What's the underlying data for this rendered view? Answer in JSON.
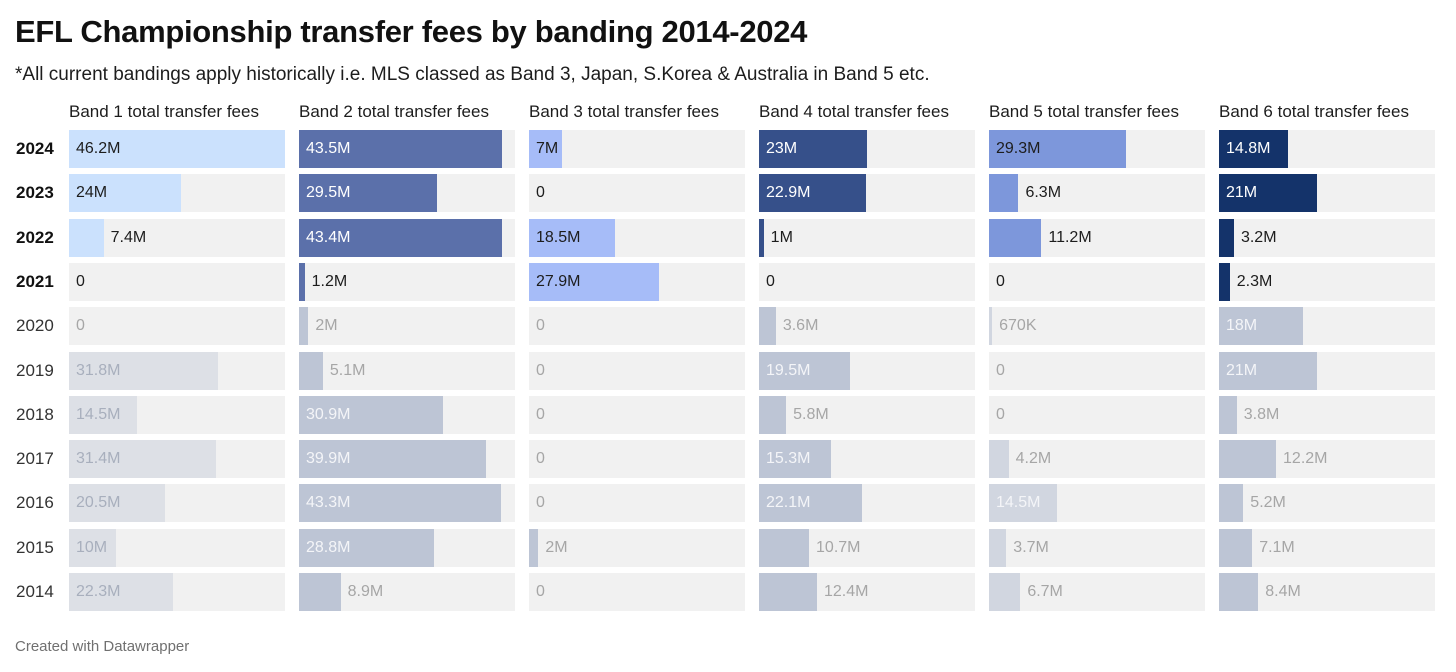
{
  "header": {
    "title": "EFL Championship transfer fees by banding 2014-2024",
    "subtitle": "*All current bandings apply historically i.e. MLS classed as Band 3, Japan, S.Korea & Australia in Band 5 etc."
  },
  "footer": {
    "credit": "Created with Datawrapper"
  },
  "chart_data": {
    "type": "bar",
    "title": "EFL Championship transfer fees by banding 2014-2024",
    "subtitle": "*All current bandings apply historically i.e. MLS classed as Band 3, Japan, S.Korea & Australia in Band 5 etc.",
    "categories": [
      "2024",
      "2023",
      "2022",
      "2021",
      "2020",
      "2019",
      "2018",
      "2017",
      "2016",
      "2015",
      "2014"
    ],
    "highlighted_categories": [
      "2024",
      "2023",
      "2022",
      "2021"
    ],
    "series": [
      {
        "name": "Band 1 total transfer fees",
        "values": [
          46.2,
          24,
          7.4,
          0,
          0,
          31.8,
          14.5,
          31.4,
          20.5,
          10,
          22.3
        ],
        "labels": [
          "46.2M",
          "24M",
          "7.4M",
          "0",
          "0",
          "31.8M",
          "14.5M",
          "31.4M",
          "20.5M",
          "10M",
          "22.3M"
        ],
        "color": "#cbe1fd"
      },
      {
        "name": "Band 2 total transfer fees",
        "values": [
          43.5,
          29.5,
          43.4,
          1.2,
          2,
          5.1,
          30.9,
          39.9,
          43.3,
          28.8,
          8.9
        ],
        "labels": [
          "43.5M",
          "29.5M",
          "43.4M",
          "1.2M",
          "2M",
          "5.1M",
          "30.9M",
          "39.9M",
          "43.3M",
          "28.8M",
          "8.9M"
        ],
        "color": "#5b70aa"
      },
      {
        "name": "Band 3 total transfer fees",
        "values": [
          7,
          0,
          18.5,
          27.9,
          0,
          0,
          0,
          0,
          0,
          2,
          0
        ],
        "labels": [
          "7M",
          "0",
          "18.5M",
          "27.9M",
          "0",
          "0",
          "0",
          "0",
          "0",
          "2M",
          "0"
        ],
        "color": "#a6bcf8"
      },
      {
        "name": "Band 4 total transfer fees",
        "values": [
          23,
          22.9,
          1,
          0,
          3.6,
          19.5,
          5.8,
          15.3,
          22.1,
          10.7,
          12.4
        ],
        "labels": [
          "23M",
          "22.9M",
          "1M",
          "0",
          "3.6M",
          "19.5M",
          "5.8M",
          "15.3M",
          "22.1M",
          "10.7M",
          "12.4M"
        ],
        "color": "#36508a"
      },
      {
        "name": "Band 5 total transfer fees",
        "values": [
          29.3,
          6.3,
          11.2,
          0,
          0.67,
          0,
          0,
          4.2,
          14.5,
          3.7,
          6.7
        ],
        "labels": [
          "29.3M",
          "6.3M",
          "11.2M",
          "0",
          "670K",
          "0",
          "0",
          "4.2M",
          "14.5M",
          "3.7M",
          "6.7M"
        ],
        "color": "#7d97db"
      },
      {
        "name": "Band 6 total transfer fees",
        "values": [
          14.8,
          21,
          3.2,
          2.3,
          18,
          21,
          3.8,
          12.2,
          5.2,
          7.1,
          8.4
        ],
        "labels": [
          "14.8M",
          "21M",
          "3.2M",
          "2.3M",
          "18M",
          "21M",
          "3.8M",
          "12.2M",
          "5.2M",
          "7.1M",
          "8.4M"
        ],
        "color": "#14336a"
      }
    ],
    "xlim": [
      0,
      46.2
    ],
    "grid": false,
    "legend": "none"
  }
}
